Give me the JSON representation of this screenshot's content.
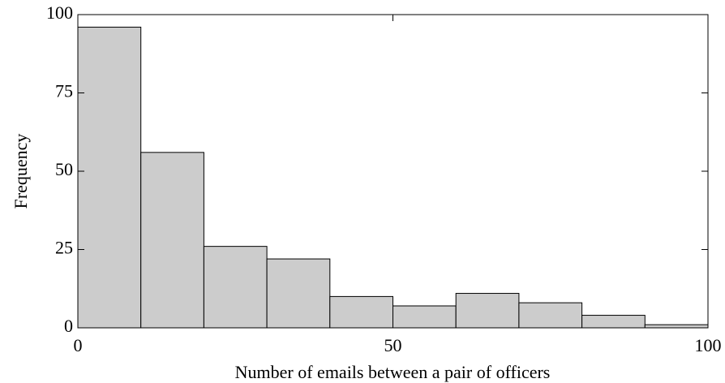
{
  "chart_data": {
    "type": "histogram",
    "xlabel": "Number of emails between a pair of officers",
    "ylabel": "Frequency",
    "bins": [
      0,
      10,
      20,
      30,
      40,
      50,
      60,
      70,
      80,
      90,
      100
    ],
    "values": [
      96,
      56,
      26,
      22,
      10,
      7,
      11,
      8,
      4,
      1
    ],
    "color": "#cccccc",
    "xlim": [
      0,
      100
    ],
    "xticks": [
      0,
      50,
      100
    ],
    "ylim": [
      0,
      100
    ],
    "yticks": [
      0,
      25,
      50,
      75,
      100
    ]
  }
}
